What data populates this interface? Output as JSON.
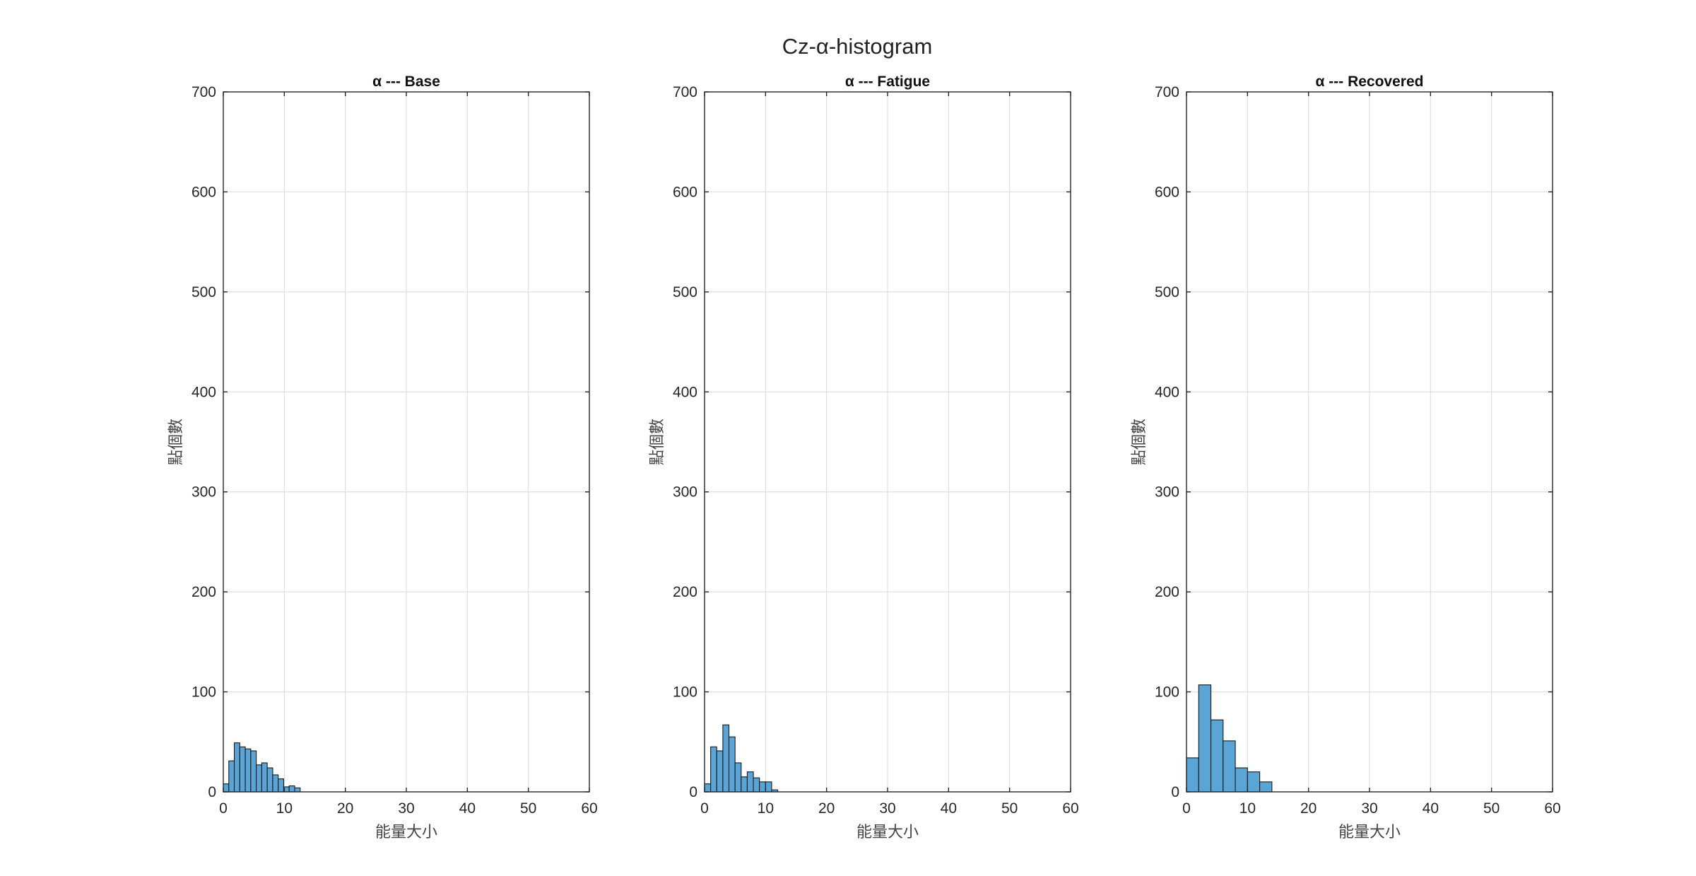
{
  "colors": {
    "bar_fill": "#5ba4d6",
    "bar_edge": "#1a1a1a"
  },
  "chart_data": {
    "title": "Cz-α-histogram",
    "panels": [
      {
        "type": "bar",
        "title": "α --- Base",
        "xlabel": "能量大小",
        "ylabel": "點個數",
        "xlim": [
          0,
          60
        ],
        "ylim": [
          0,
          700
        ],
        "xticks": [
          "0",
          "10",
          "20",
          "30",
          "40",
          "50",
          "60"
        ],
        "yticks": [
          "0",
          "100",
          "200",
          "300",
          "400",
          "500",
          "600",
          "700"
        ],
        "grid": true,
        "bin_width": 0.9,
        "bin_start": 0,
        "values": [
          8,
          31,
          49,
          45,
          43,
          41,
          27,
          29,
          24,
          17,
          13,
          5,
          6,
          4
        ]
      },
      {
        "type": "bar",
        "title": "α --- Fatigue",
        "xlabel": "能量大小",
        "ylabel": "點個數",
        "xlim": [
          0,
          60
        ],
        "ylim": [
          0,
          700
        ],
        "xticks": [
          "0",
          "10",
          "20",
          "30",
          "40",
          "50",
          "60"
        ],
        "yticks": [
          "0",
          "100",
          "200",
          "300",
          "400",
          "500",
          "600",
          "700"
        ],
        "grid": true,
        "bin_width": 1.0,
        "bin_start": 0,
        "values": [
          8,
          45,
          41,
          67,
          55,
          29,
          15,
          20,
          14,
          10,
          10,
          2
        ]
      },
      {
        "type": "bar",
        "title": "α --- Recovered",
        "xlabel": "能量大小",
        "ylabel": "點個數",
        "xlim": [
          0,
          60
        ],
        "ylim": [
          0,
          700
        ],
        "xticks": [
          "0",
          "10",
          "20",
          "30",
          "40",
          "50",
          "60"
        ],
        "yticks": [
          "0",
          "100",
          "200",
          "300",
          "400",
          "500",
          "600",
          "700"
        ],
        "grid": true,
        "bin_width": 2.0,
        "bin_start": 0,
        "values": [
          34,
          107,
          72,
          51,
          24,
          20,
          10
        ]
      }
    ]
  }
}
